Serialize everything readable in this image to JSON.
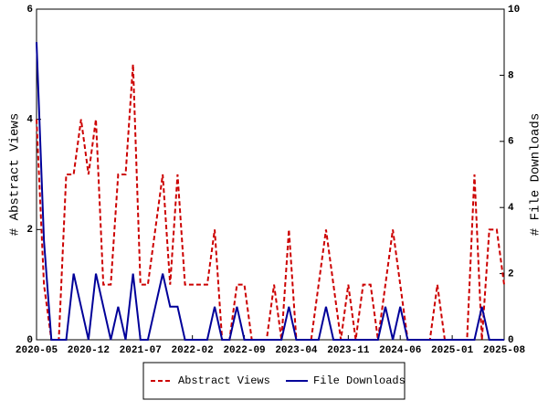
{
  "chart_data": {
    "type": "line",
    "categories": [
      "2020-05",
      null,
      null,
      null,
      null,
      null,
      null,
      "2020-12",
      null,
      null,
      null,
      null,
      null,
      null,
      "2021-07",
      null,
      null,
      null,
      null,
      null,
      null,
      "2022-02",
      null,
      null,
      null,
      null,
      null,
      null,
      "2022-09",
      null,
      null,
      null,
      null,
      null,
      null,
      "2023-04",
      null,
      null,
      null,
      null,
      null,
      null,
      "2023-11",
      null,
      null,
      null,
      null,
      null,
      null,
      "2024-06",
      null,
      null,
      null,
      null,
      null,
      null,
      "2025-01",
      null,
      null,
      null,
      null,
      null,
      null,
      "2025-08"
    ],
    "ylabel": "# Abstract Views",
    "y2label": "# File Downloads",
    "ylim": [
      0,
      6
    ],
    "yticks": [
      0,
      2,
      4,
      6
    ],
    "y2lim": [
      0,
      10
    ],
    "y2ticks": [
      0,
      2,
      4,
      6,
      8,
      10
    ],
    "series": [
      {
        "name": "Abstract Views",
        "color": "#cc0000",
        "dash": true,
        "values": [
          4,
          1,
          0,
          0,
          3,
          3,
          4,
          3,
          4,
          1,
          1,
          3,
          3,
          5,
          1,
          1,
          2,
          3,
          1,
          3,
          1,
          1,
          1,
          1,
          2,
          0,
          0,
          1,
          1,
          0,
          0,
          0,
          1,
          0,
          2,
          0,
          0,
          0,
          1,
          2,
          1,
          0,
          1,
          0,
          1,
          1,
          0,
          1,
          2,
          1,
          0,
          0,
          0,
          0,
          1,
          0,
          0,
          0,
          0,
          3,
          0,
          2,
          2,
          1
        ]
      },
      {
        "name": "File Downloads",
        "color": "#000099",
        "axis": "y2",
        "values": [
          9,
          3,
          0,
          0,
          0,
          2,
          1,
          0,
          2,
          1,
          0,
          1,
          0,
          2,
          0,
          0,
          1,
          2,
          1,
          1,
          0,
          0,
          0,
          0,
          1,
          0,
          0,
          1,
          0,
          0,
          0,
          0,
          0,
          0,
          1,
          0,
          0,
          0,
          0,
          1,
          0,
          0,
          0,
          0,
          0,
          0,
          0,
          1,
          0,
          1,
          0,
          0,
          0,
          0,
          0,
          0,
          0,
          0,
          0,
          0,
          1,
          0,
          0,
          0
        ]
      }
    ]
  }
}
